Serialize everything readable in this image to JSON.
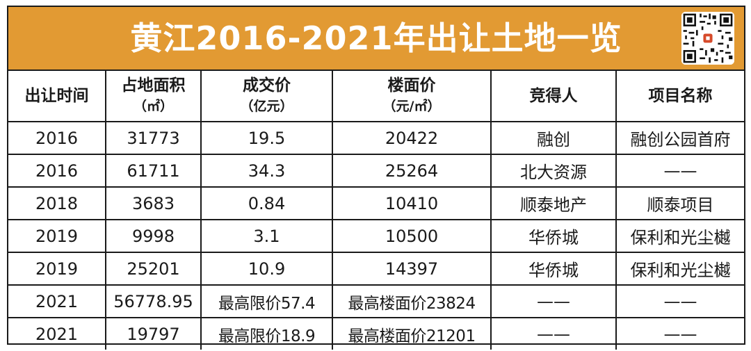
{
  "title": "黄江2016-2021年出让土地一览",
  "colors": {
    "title_bg": "#e29a33",
    "title_text": "#ffffff",
    "border": "#1a1a1a"
  },
  "headers": [
    {
      "main": "出让时间",
      "sub": ""
    },
    {
      "main": "占地面积",
      "sub": "（㎡）"
    },
    {
      "main": "成交价",
      "sub": "（亿元）"
    },
    {
      "main": "楼面价",
      "sub": "（元/㎡）"
    },
    {
      "main": "竞得人",
      "sub": ""
    },
    {
      "main": "项目名称",
      "sub": ""
    }
  ],
  "rows": [
    [
      "2016",
      "31773",
      "19.5",
      "20422",
      "融创",
      "融创公园首府"
    ],
    [
      "2016",
      "61711",
      "34.3",
      "25264",
      "北大资源",
      "——"
    ],
    [
      "2018",
      "3683",
      "0.84",
      "10410",
      "顺泰地产",
      "顺泰项目"
    ],
    [
      "2019",
      "9998",
      "3.1",
      "10500",
      "华侨城",
      "保利和光尘樾"
    ],
    [
      "2019",
      "25201",
      "10.9",
      "14397",
      "华侨城",
      "保利和光尘樾"
    ],
    [
      "2021",
      "56778.95",
      "最高限价57.4",
      "最高楼面价23824",
      "——",
      "——"
    ],
    [
      "2021",
      "19797",
      "最高限价18.9",
      "最高楼面价21201",
      "——",
      "——"
    ]
  ]
}
